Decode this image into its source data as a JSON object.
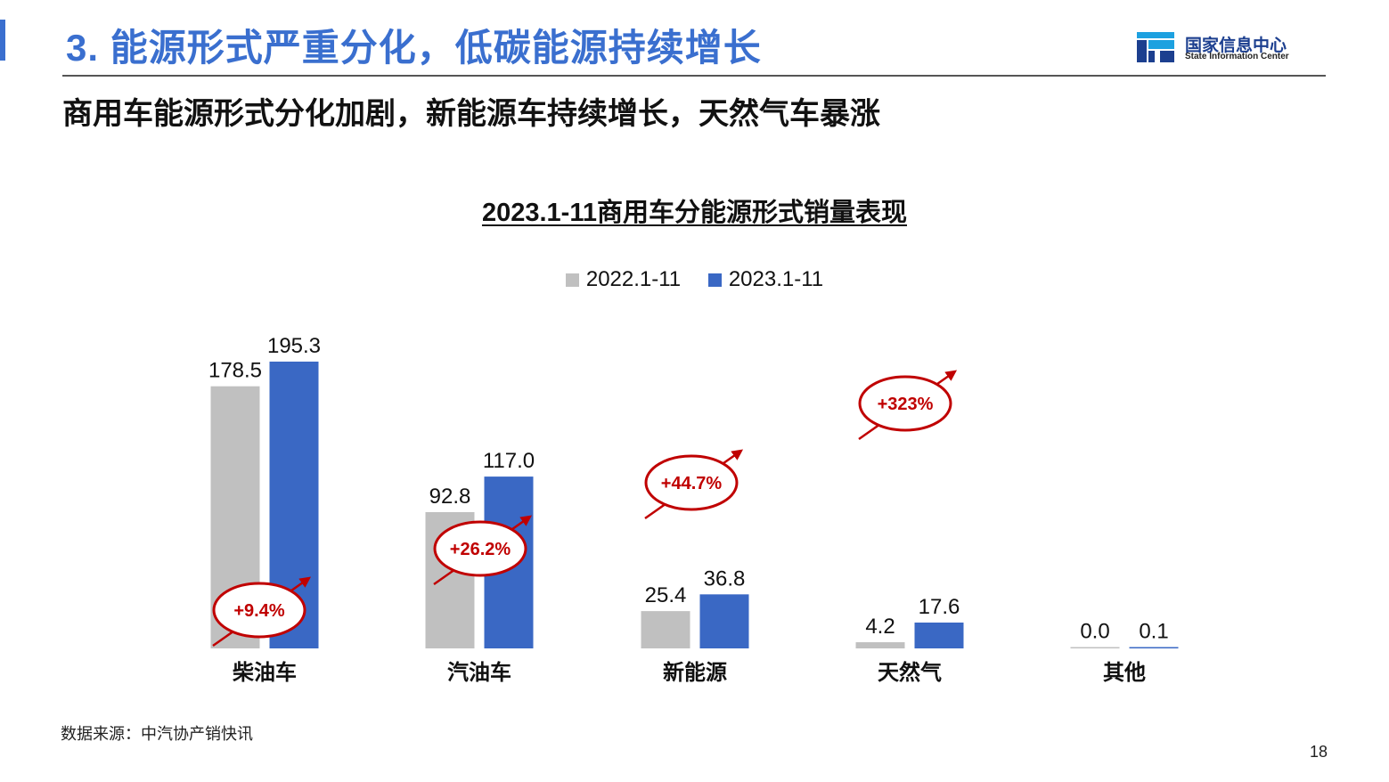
{
  "slide": {
    "title": "3. 能源形式严重分化，低碳能源持续增长",
    "subtitle": "商用车能源形式分化加剧，新能源车持续增长，天然气车暴涨",
    "logo_cn": "国家信息中心",
    "logo_en": "State Information Center",
    "source": "数据来源：中汽协产销快讯",
    "page_number": "18"
  },
  "colors": {
    "series_2022": "#c0c0c0",
    "series_2023": "#3a68c4",
    "title_blue": "#3a6fcf",
    "growth_red": "#c00000"
  },
  "chart_data": {
    "type": "bar",
    "title": "2023.1-11商用车分能源形式销量表现",
    "categories": [
      "柴油车",
      "汽油车",
      "新能源",
      "天然气",
      "其他"
    ],
    "series": [
      {
        "name": "2022.1-11",
        "values": [
          178.5,
          92.8,
          25.4,
          4.2,
          0.0
        ],
        "labels": [
          "178.5",
          "92.8",
          "25.4",
          "4.2",
          "0.0"
        ]
      },
      {
        "name": "2023.1-11",
        "values": [
          195.3,
          117.0,
          36.8,
          17.6,
          0.1
        ],
        "labels": [
          "195.3",
          "117.0",
          "36.8",
          "17.6",
          "0.1"
        ]
      }
    ],
    "growth_annotations": [
      {
        "category": "柴油车",
        "text": "+9.4%"
      },
      {
        "category": "汽油车",
        "text": "+26.2%"
      },
      {
        "category": "新能源",
        "text": "+44.7%"
      },
      {
        "category": "天然气",
        "text": "+323%"
      }
    ],
    "legend_position": "top-center",
    "grid": false,
    "ylim": [
      0,
      195.3
    ]
  }
}
